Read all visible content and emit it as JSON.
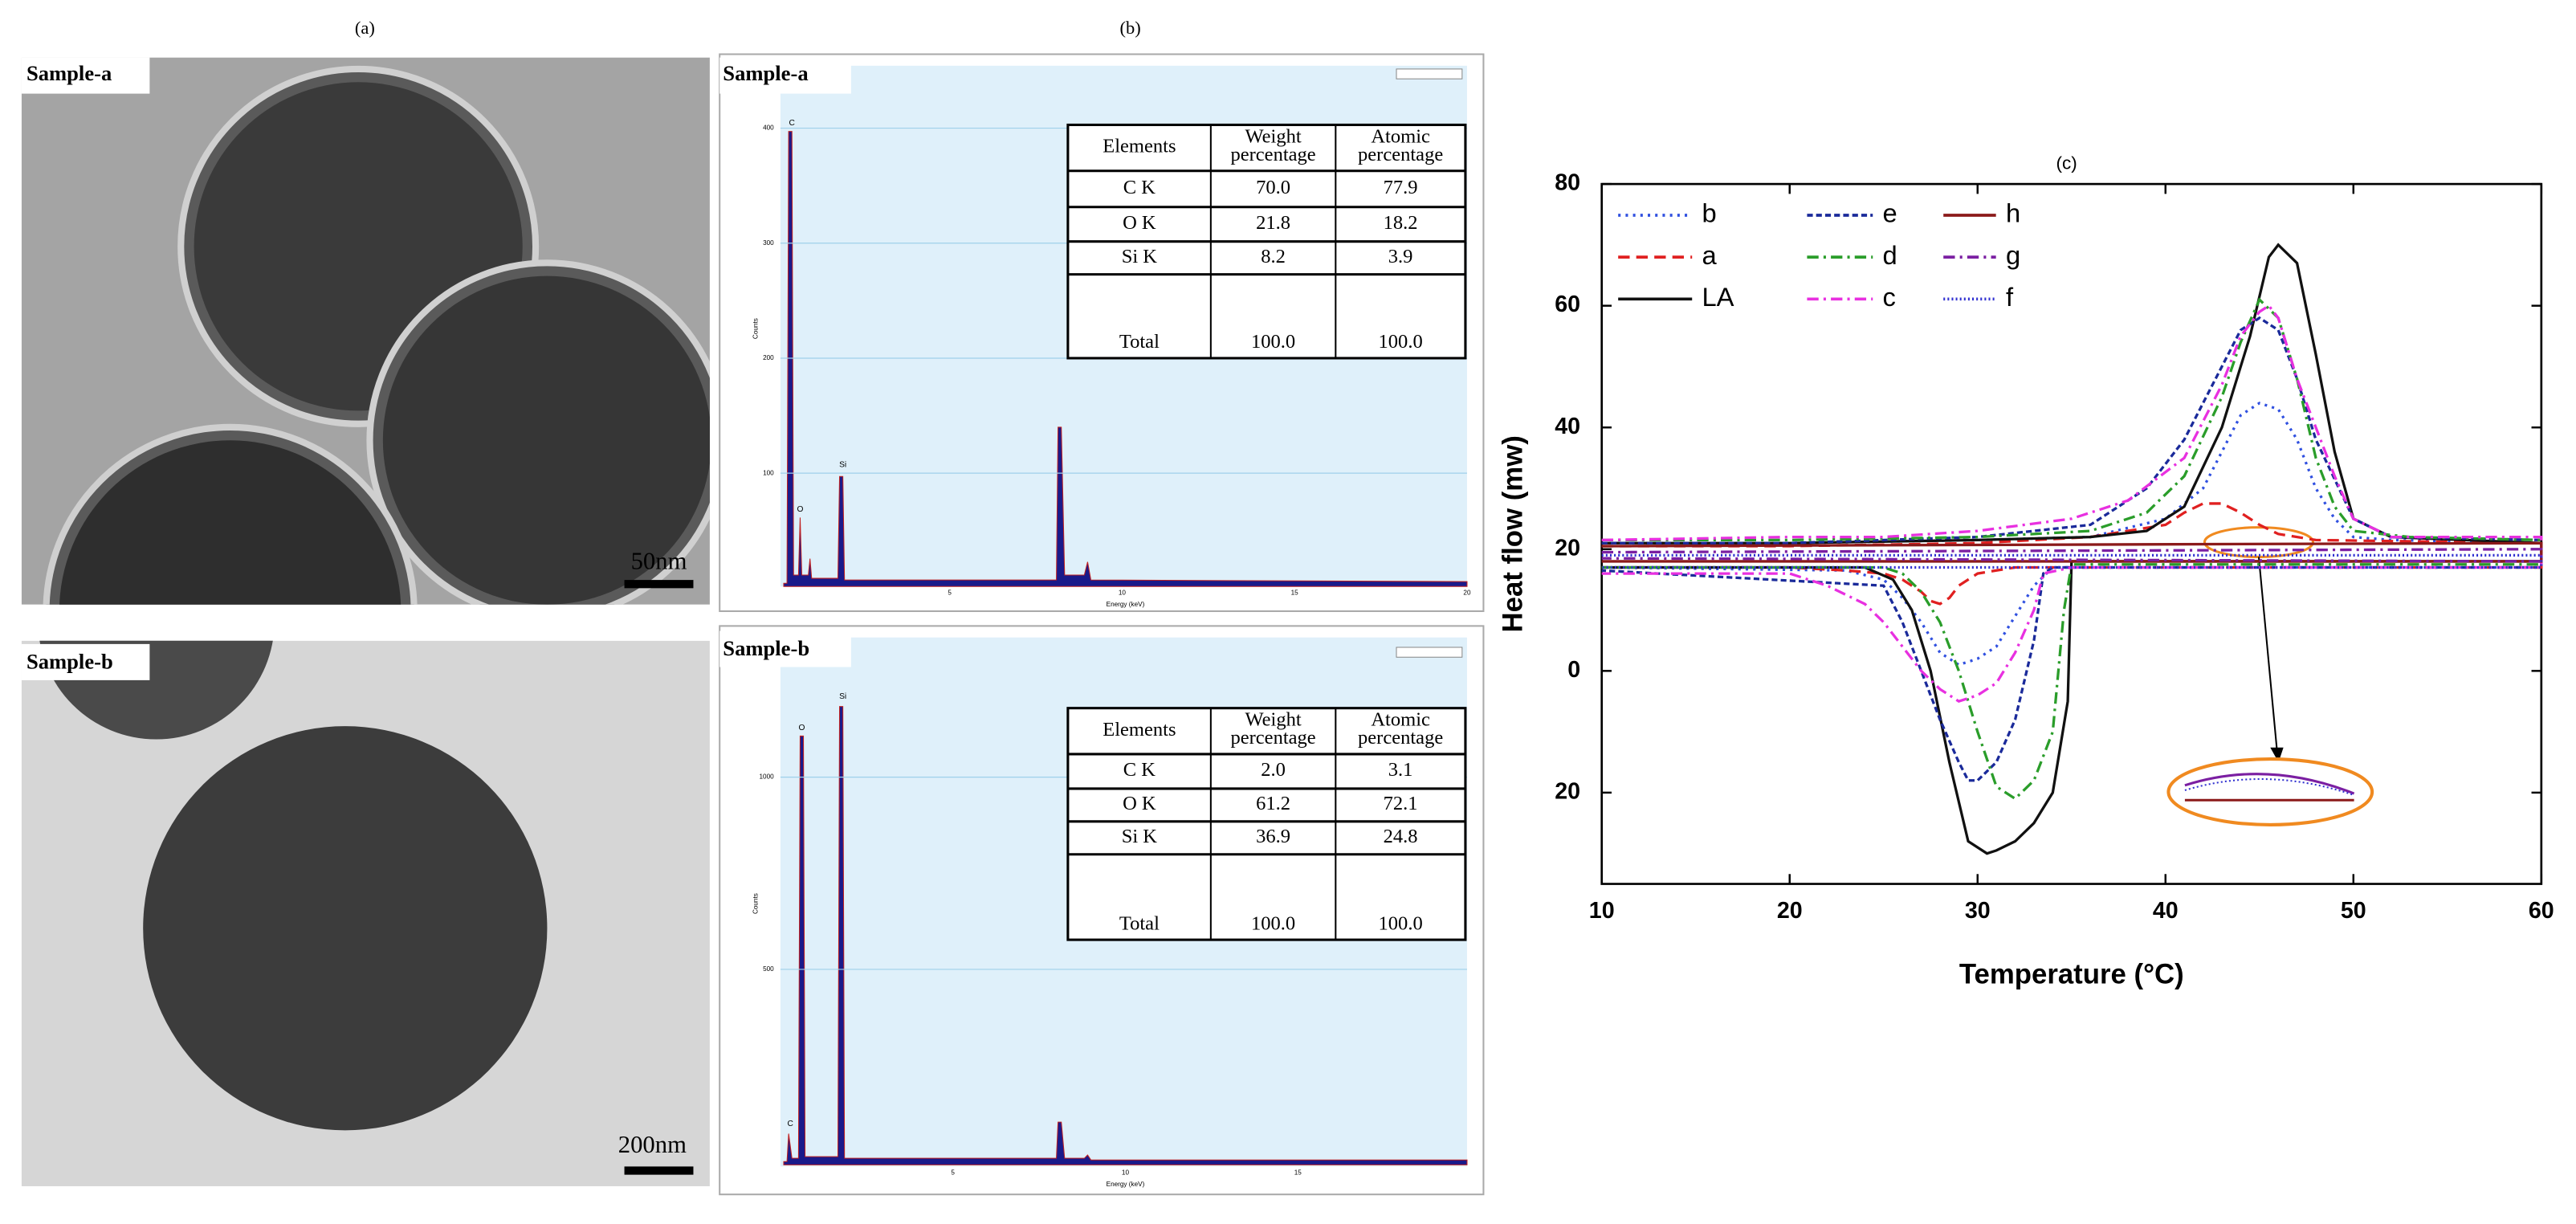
{
  "panel_labels": [
    "(a)",
    "(b)"
  ],
  "tem": [
    {
      "label": "Sample-a",
      "scale_bar": "50nm"
    },
    {
      "label": "Sample-b",
      "scale_bar": "200nm"
    }
  ],
  "eds": [
    {
      "label": "Sample-a",
      "y_label": "Counts",
      "x_label": "Energy (keV)",
      "yticks": [
        "400",
        "300",
        "200",
        "100"
      ],
      "xticks": [
        "5",
        "10",
        "15",
        "20"
      ],
      "peaks": [
        "C",
        "O",
        "Si"
      ],
      "table": {
        "header": [
          "Elements",
          [
            "Weight",
            "percentage"
          ],
          [
            "Atomic",
            "percentage"
          ]
        ],
        "rows": [
          [
            "C  K",
            "70.0",
            "77.9"
          ],
          [
            "O  K",
            "21.8",
            "18.2"
          ],
          [
            "Si  K",
            "8.2",
            "3.9"
          ],
          [
            "Total",
            "100.0",
            "100.0"
          ]
        ]
      }
    },
    {
      "label": "Sample-b",
      "y_label": "Counts",
      "x_label": "Energy (keV)",
      "yticks": [
        "1000",
        "500"
      ],
      "xticks": [
        "5",
        "10",
        "15"
      ],
      "peaks": [
        "C",
        "O",
        "Si"
      ],
      "table": {
        "header": [
          "Elements",
          [
            "Weight",
            "percentage"
          ],
          [
            "Atomic",
            "percentage"
          ]
        ],
        "rows": [
          [
            "C  K",
            "2.0",
            "3.1"
          ],
          [
            "O  K",
            "61.2",
            "72.1"
          ],
          [
            "Si  K",
            "36.9",
            "24.8"
          ],
          [
            "Total",
            "100.0",
            "100.0"
          ]
        ]
      }
    }
  ],
  "chart_data": {
    "type": "line",
    "title": "(c)",
    "x_label": "Temperature (°C)",
    "y_label": "Heat flow (mw)",
    "xlim": [
      10,
      60
    ],
    "ylim": [
      -35,
      80
    ],
    "xticks": [
      10,
      20,
      30,
      40,
      50,
      60
    ],
    "yticks": [
      80,
      60,
      40,
      20,
      0,
      {
        "value": -20,
        "label": "20"
      }
    ],
    "legend": "upper left",
    "series": [
      {
        "name": "b",
        "color": "#3050e0",
        "dash": "dot",
        "x": [
          10,
          20,
          30,
          36,
          40,
          42,
          43,
          44,
          45,
          46,
          47,
          48,
          49,
          50,
          52,
          60,
          60,
          40,
          34,
          33,
          32,
          31,
          30,
          29,
          28,
          27,
          26,
          25,
          23,
          10
        ],
        "values": [
          21,
          21,
          21.5,
          22,
          25,
          30,
          36,
          42,
          44,
          43,
          38,
          30,
          25,
          22,
          21.5,
          21,
          17,
          17,
          17,
          14,
          9,
          4,
          2,
          1,
          3,
          8,
          12,
          15,
          16.5,
          17
        ]
      },
      {
        "name": "a",
        "color": "#e02020",
        "dash": "dash",
        "x": [
          10,
          20,
          30,
          36,
          38,
          40,
          41,
          42,
          43,
          44,
          45,
          46,
          48,
          60,
          60,
          40,
          32,
          30,
          29,
          28.5,
          28,
          27.5,
          27,
          26,
          25,
          23,
          20,
          10
        ],
        "values": [
          20.5,
          20.5,
          21,
          22,
          23,
          24,
          26,
          27.5,
          27.5,
          26,
          24,
          22.5,
          21.5,
          21,
          17,
          17,
          17,
          16,
          14,
          12,
          11,
          11.5,
          13,
          15,
          16,
          16.5,
          17,
          17
        ]
      },
      {
        "name": "LA",
        "color": "#111111",
        "dash": "solid",
        "x": [
          10,
          20,
          30,
          36,
          39,
          41,
          43,
          44.5,
          45.5,
          46,
          47,
          48,
          49,
          50,
          52,
          60,
          60,
          40,
          35,
          34.8,
          34,
          33,
          32,
          31,
          30.5,
          29.5,
          28.5,
          27.5,
          26.5,
          25.5,
          24,
          10
        ],
        "values": [
          21,
          21,
          21.5,
          22,
          23,
          27,
          40,
          55,
          68,
          70,
          67,
          52,
          36,
          25,
          22,
          21,
          18,
          18,
          18,
          -5,
          -20,
          -25,
          -28,
          -29.5,
          -30,
          -28,
          -15,
          0,
          10,
          15,
          17,
          17
        ]
      },
      {
        "name": "e",
        "color": "#1a2a9a",
        "dash": "short-dash",
        "x": [
          10,
          20,
          30,
          36,
          39,
          41,
          43,
          44,
          45,
          46,
          47,
          48,
          50,
          52,
          60,
          60,
          40,
          34,
          33.5,
          33,
          32,
          31,
          30,
          29.5,
          29,
          28,
          27,
          26,
          25,
          10
        ],
        "values": [
          21,
          21,
          22,
          24,
          30,
          38,
          50,
          56,
          58,
          56,
          48,
          38,
          25,
          22,
          21.5,
          17,
          17,
          17,
          16,
          5,
          -8,
          -15,
          -18,
          -18,
          -15,
          -8,
          0,
          8,
          14,
          16.5
        ]
      },
      {
        "name": "d",
        "color": "#2a9d2a",
        "dash": "dash-dot",
        "x": [
          10,
          20,
          30,
          36,
          39,
          41,
          43,
          44,
          45,
          46,
          47,
          48,
          49,
          50,
          53,
          60,
          60,
          40,
          35,
          34.6,
          34,
          33,
          32,
          31,
          30,
          29,
          28,
          27,
          26,
          25,
          10
        ],
        "values": [
          21.5,
          21.5,
          22,
          23,
          26,
          32,
          45,
          54,
          61,
          58,
          48,
          35,
          27,
          23,
          22,
          21.5,
          17.5,
          17.5,
          17.5,
          10,
          -10,
          -18,
          -21,
          -19,
          -10,
          0,
          8,
          13,
          16,
          17,
          17
        ]
      },
      {
        "name": "c",
        "color": "#e830e0",
        "dash": "dash-dot",
        "x": [
          10,
          20,
          25,
          30,
          35,
          38,
          41,
          43,
          44,
          45,
          45.5,
          46,
          47,
          48,
          49,
          50,
          52,
          60,
          60,
          40,
          35,
          33.5,
          33,
          32,
          31,
          30,
          29,
          28,
          27,
          26,
          25,
          24,
          22,
          20,
          10
        ],
        "values": [
          21.5,
          22,
          22,
          23,
          25,
          28,
          35,
          47,
          55,
          59,
          60,
          58,
          48,
          40,
          32,
          25,
          22,
          22,
          17,
          17,
          17,
          16,
          10,
          3,
          -2,
          -4,
          -5,
          -3,
          0,
          4,
          8,
          11,
          14,
          16,
          16
        ]
      },
      {
        "name": "h",
        "color": "#8b1a1a",
        "dash": "solid",
        "x": [
          10,
          60,
          60,
          10
        ],
        "values": [
          20.5,
          21,
          18,
          18
        ]
      },
      {
        "name": "g",
        "color": "#7b1fa2",
        "dash": "dash-dot",
        "x": [
          10,
          60,
          60,
          10
        ],
        "values": [
          19.5,
          20,
          18,
          18.5
        ]
      },
      {
        "name": "f",
        "color": "#3030d0",
        "dash": "fine-dot",
        "x": [
          10,
          60,
          60,
          10
        ],
        "values": [
          19,
          19,
          17,
          17
        ]
      }
    ]
  }
}
